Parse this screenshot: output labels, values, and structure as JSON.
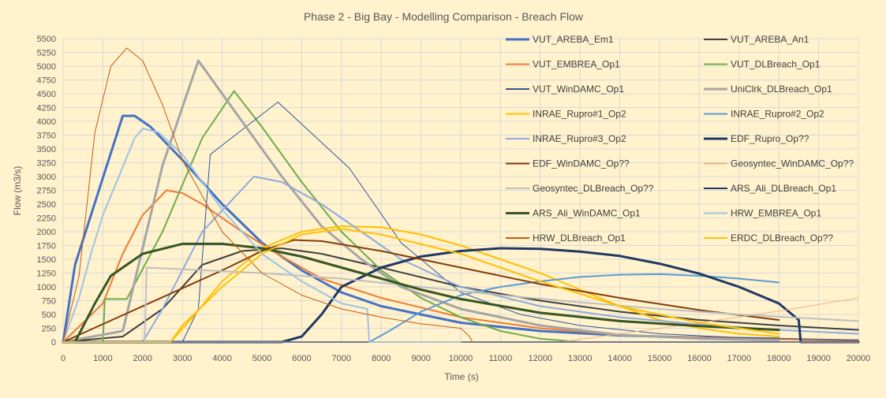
{
  "chart_data": {
    "type": "line",
    "title": "Phase 2  -  Big Bay -  Modelling Comparison - Breach Flow",
    "xlabel": "Time (s)",
    "ylabel": "Flow (m3/s)",
    "xlim": [
      0,
      20000
    ],
    "ylim": [
      0,
      5500
    ],
    "xticks": [
      0,
      1000,
      2000,
      3000,
      4000,
      5000,
      6000,
      7000,
      8000,
      9000,
      10000,
      11000,
      12000,
      13000,
      14000,
      15000,
      16000,
      17000,
      18000,
      19000,
      20000
    ],
    "yticks": [
      0,
      250,
      500,
      750,
      1000,
      1250,
      1500,
      1750,
      2000,
      2250,
      2500,
      2750,
      3000,
      3250,
      3500,
      3750,
      4000,
      4250,
      4500,
      4750,
      5000,
      5250,
      5500
    ],
    "grid": true,
    "legend_position": "top-right",
    "series": [
      {
        "name": "VUT_AREBA_Em1",
        "color": "#4472C4",
        "width": 3,
        "x": [
          0,
          300,
          1500,
          1800,
          2200,
          3000,
          4000,
          5000,
          6000,
          7000,
          8000,
          10000,
          12000,
          14000,
          16000,
          18000
        ],
        "y": [
          0,
          1400,
          4100,
          4100,
          3900,
          3300,
          2500,
          1800,
          1300,
          900,
          650,
          350,
          200,
          120,
          80,
          60
        ]
      },
      {
        "name": "VUT_AREBA_An1",
        "color": "#404040",
        "width": 2,
        "x": [
          0,
          1500,
          2500,
          3500,
          4500,
          5500,
          6500,
          8000,
          10000,
          12000,
          14000,
          16000,
          18000,
          20000
        ],
        "y": [
          0,
          100,
          600,
          1400,
          1650,
          1700,
          1600,
          1350,
          1000,
          750,
          550,
          400,
          300,
          220
        ]
      },
      {
        "name": "VUT_EMBREA_Op1",
        "color": "#ED7D31",
        "width": 2,
        "x": [
          0,
          1000,
          1500,
          2000,
          2600,
          3000,
          3500,
          4500,
          5500,
          6500,
          8000,
          10000,
          12000,
          14000,
          16000,
          18000,
          20000
        ],
        "y": [
          0,
          700,
          1600,
          2300,
          2750,
          2700,
          2500,
          2000,
          1550,
          1150,
          800,
          450,
          250,
          130,
          80,
          50,
          30
        ]
      },
      {
        "name": "VUT_DLBreach_Op1",
        "color": "#70AD47",
        "width": 2,
        "x": [
          0,
          1000,
          1050,
          1600,
          2500,
          3500,
          4300,
          5000,
          6000,
          7000,
          8000,
          9000,
          10000,
          11000,
          12000,
          13000
        ],
        "y": [
          0,
          0,
          780,
          780,
          2000,
          3700,
          4550,
          3900,
          2900,
          2000,
          1300,
          800,
          450,
          200,
          60,
          0
        ]
      },
      {
        "name": "VUT_WinDAMC_Op1",
        "color": "#2F5597",
        "width": 1,
        "x": [
          0,
          2500,
          3000,
          3400,
          3700,
          5400,
          7200,
          8500,
          10000,
          11500,
          13000,
          15000,
          17000,
          20000
        ],
        "y": [
          0,
          0,
          0,
          600,
          3400,
          4350,
          3150,
          1800,
          900,
          500,
          300,
          150,
          80,
          40
        ]
      },
      {
        "name": "UniClrk_DLBreach_Op1",
        "color": "#A5A5A5",
        "width": 3,
        "x": [
          0,
          1500,
          2500,
          3400,
          4500,
          5500,
          6500,
          7500,
          8500,
          10000,
          12000,
          14000,
          16000,
          18000
        ],
        "y": [
          0,
          200,
          3200,
          5100,
          4000,
          3000,
          2100,
          1500,
          1000,
          600,
          300,
          130,
          60,
          30
        ]
      },
      {
        "name": "INRAE_Rupro#1_Op2",
        "color": "#FFC000",
        "width": 2,
        "x": [
          0,
          2700,
          3200,
          4000,
          5000,
          6000,
          7000,
          8000,
          9000,
          10000,
          11000,
          12000,
          13000,
          14000,
          15000,
          16000,
          17000,
          18000
        ],
        "y": [
          0,
          0,
          400,
          1100,
          1700,
          2000,
          2100,
          2080,
          1950,
          1750,
          1500,
          1250,
          950,
          650,
          400,
          250,
          150,
          100
        ]
      },
      {
        "name": "INRAE_Rupro#2_Op2",
        "color": "#5B9BD5",
        "width": 2,
        "x": [
          0,
          7700,
          8200,
          9000,
          10000,
          11000,
          12000,
          13000,
          14000,
          15000,
          16000,
          17000,
          18000
        ],
        "y": [
          0,
          0,
          200,
          550,
          850,
          1000,
          1100,
          1180,
          1220,
          1230,
          1200,
          1150,
          1080
        ]
      },
      {
        "name": "INRAE_Rupro#3_Op2",
        "color": "#8FAADC",
        "width": 2,
        "x": [
          0,
          2000,
          2500,
          3500,
          4800,
          5500,
          6500,
          7500,
          8500,
          10000,
          12000,
          14000,
          16000,
          18000,
          20000
        ],
        "y": [
          0,
          0,
          600,
          2000,
          3000,
          2900,
          2500,
          2000,
          1500,
          1000,
          650,
          450,
          320,
          220,
          150
        ]
      },
      {
        "name": "EDF_Rupro_Op??",
        "color": "#1F3864",
        "width": 3,
        "x": [
          0,
          5500,
          6000,
          6500,
          7000,
          8000,
          9000,
          10000,
          11000,
          12000,
          13000,
          14000,
          15000,
          16000,
          17000,
          18000,
          18500,
          18550,
          20000
        ],
        "y": [
          0,
          0,
          100,
          500,
          1000,
          1350,
          1550,
          1650,
          1700,
          1690,
          1640,
          1560,
          1420,
          1240,
          1000,
          700,
          400,
          0,
          0
        ]
      },
      {
        "name": "EDF_WinDAMC_Op??",
        "color": "#843C0C",
        "width": 2,
        "x": [
          0,
          4000,
          5000,
          5800,
          6500,
          8000,
          10000,
          12000,
          14000,
          16000,
          18000
        ],
        "y": [
          0,
          1300,
          1650,
          1850,
          1830,
          1650,
          1350,
          1050,
          800,
          580,
          400
        ]
      },
      {
        "name": "Geosyntec_WinDAMC_Op??",
        "color": "#F4B183",
        "width": 1,
        "x": [
          0,
          12500,
          14000,
          16000,
          18000,
          20000
        ],
        "y": [
          0,
          0,
          150,
          350,
          560,
          800
        ]
      },
      {
        "name": "Geosyntec_DLBreach_Op??",
        "color": "#BFBFBF",
        "width": 2,
        "x": [
          0,
          2050,
          2100,
          3000,
          5000,
          7000,
          9000,
          11000,
          13000,
          15000,
          17000,
          20000
        ],
        "y": [
          0,
          0,
          1350,
          1320,
          1250,
          1150,
          1000,
          850,
          720,
          600,
          500,
          380
        ]
      },
      {
        "name": "ARS_Ali_DLBreach_Op1",
        "color": "#203864",
        "width": 2,
        "x": [
          0,
          3600,
          4500,
          5000,
          6000,
          7000,
          8000,
          9000,
          10000,
          11000,
          12000,
          13000,
          14000,
          20000
        ],
        "y": [
          0,
          0,
          0,
          0,
          0,
          0,
          0,
          0,
          0,
          0,
          0,
          0,
          0,
          0
        ]
      },
      {
        "name": "ARS_Ali_WinDAMC_Op1",
        "color": "#375623",
        "width": 3,
        "x": [
          0,
          300,
          800,
          1200,
          2000,
          3000,
          4000,
          5000,
          6000,
          7000,
          8000,
          9000,
          10000,
          12000,
          14000,
          16000,
          18000
        ],
        "y": [
          0,
          0,
          700,
          1200,
          1600,
          1780,
          1780,
          1700,
          1550,
          1350,
          1150,
          950,
          780,
          530,
          380,
          290,
          220
        ]
      },
      {
        "name": "HRW_EMBREA_Op1",
        "color": "#9DC3E6",
        "width": 2,
        "x": [
          0,
          400,
          700,
          1000,
          1400,
          1800,
          2000,
          2400,
          3000,
          4000,
          5000,
          6000,
          7000,
          7650,
          7700,
          8000,
          10000
        ],
        "y": [
          0,
          800,
          1600,
          2300,
          3000,
          3700,
          3870,
          3800,
          3400,
          2400,
          1600,
          1100,
          700,
          600,
          0,
          0,
          0
        ]
      },
      {
        "name": "HRW_DLBreach_Op1",
        "color": "#C55A11",
        "width": 1,
        "x": [
          0,
          400,
          800,
          1200,
          1600,
          2000,
          2500,
          3000,
          4000,
          5000,
          6000,
          7000,
          8000,
          9000,
          10000,
          10200,
          10300,
          20000
        ],
        "y": [
          0,
          1200,
          3800,
          5000,
          5330,
          5100,
          4300,
          3300,
          2000,
          1250,
          850,
          600,
          450,
          330,
          250,
          120,
          0,
          0
        ]
      },
      {
        "name": "ERDC_DLBreach_Op??",
        "color": "#FFC000",
        "width": 2,
        "x": [
          0,
          2700,
          3000,
          4000,
          5000,
          6000,
          7000,
          8000,
          10000,
          12000,
          14000,
          16000,
          18000
        ],
        "y": [
          0,
          0,
          300,
          1000,
          1600,
          1950,
          2050,
          1950,
          1600,
          1100,
          650,
          350,
          150
        ]
      }
    ]
  }
}
